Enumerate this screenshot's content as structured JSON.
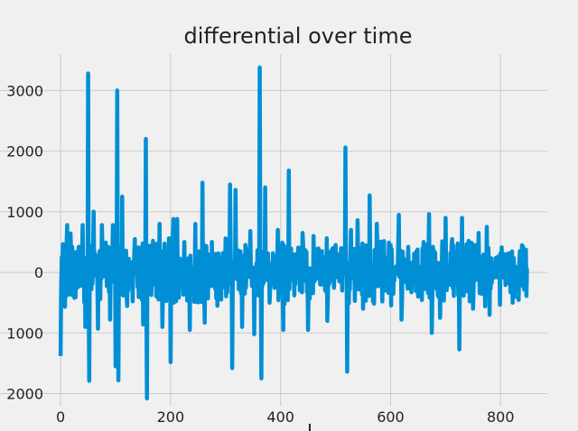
{
  "chart_data": {
    "type": "line",
    "title": "differential over time",
    "xlabel": "",
    "ylabel": "",
    "xlim": [
      -15,
      885
    ],
    "ylim": [
      -2200,
      3600
    ],
    "x_ticks": [
      0,
      200,
      400,
      600,
      800
    ],
    "x_tick_labels": [
      "0",
      "200",
      "400",
      "600",
      "800"
    ],
    "y_ticks": [
      -2000,
      -1000,
      0,
      1000,
      2000,
      3000
    ],
    "y_tick_labels": [
      "2000",
      "1000",
      "0",
      "1000",
      "2000",
      "3000"
    ],
    "grid": true,
    "legend": "none",
    "colors": {
      "line": "#008fd5",
      "background": "#f0f0f0",
      "grid": "#cbcbcb"
    },
    "series": [
      {
        "x_start": 0,
        "x_step": 1,
        "seed": 7,
        "noise_amplitude": 520,
        "values_known_extremes": [
          [
            0,
            -1380
          ],
          [
            5,
            -150
          ],
          [
            12,
            780
          ],
          [
            18,
            640
          ],
          [
            25,
            -420
          ],
          [
            33,
            420
          ],
          [
            40,
            780
          ],
          [
            45,
            -900
          ],
          [
            50,
            3280
          ],
          [
            52,
            -1790
          ],
          [
            60,
            1000
          ],
          [
            68,
            -930
          ],
          [
            75,
            780
          ],
          [
            82,
            490
          ],
          [
            90,
            -780
          ],
          [
            95,
            780
          ],
          [
            100,
            -1550
          ],
          [
            103,
            3000
          ],
          [
            105,
            -1780
          ],
          [
            112,
            1250
          ],
          [
            120,
            -380
          ],
          [
            135,
            550
          ],
          [
            150,
            -860
          ],
          [
            155,
            2200
          ],
          [
            157,
            -2080
          ],
          [
            168,
            520
          ],
          [
            180,
            800
          ],
          [
            185,
            -900
          ],
          [
            200,
            -1480
          ],
          [
            205,
            880
          ],
          [
            212,
            880
          ],
          [
            225,
            500
          ],
          [
            235,
            -950
          ],
          [
            245,
            800
          ],
          [
            258,
            1480
          ],
          [
            262,
            -830
          ],
          [
            275,
            500
          ],
          [
            285,
            -550
          ],
          [
            300,
            560
          ],
          [
            308,
            1450
          ],
          [
            312,
            -1580
          ],
          [
            318,
            1360
          ],
          [
            330,
            -900
          ],
          [
            345,
            680
          ],
          [
            352,
            -1020
          ],
          [
            362,
            3380
          ],
          [
            365,
            -1750
          ],
          [
            372,
            1400
          ],
          [
            380,
            -500
          ],
          [
            395,
            700
          ],
          [
            405,
            -950
          ],
          [
            415,
            1680
          ],
          [
            425,
            -380
          ],
          [
            440,
            650
          ],
          [
            450,
            -950
          ],
          [
            460,
            600
          ],
          [
            475,
            350
          ],
          [
            485,
            -800
          ],
          [
            495,
            400
          ],
          [
            510,
            400
          ],
          [
            518,
            2060
          ],
          [
            521,
            -1640
          ],
          [
            528,
            700
          ],
          [
            540,
            860
          ],
          [
            550,
            -600
          ],
          [
            562,
            1270
          ],
          [
            575,
            800
          ],
          [
            590,
            -300
          ],
          [
            600,
            450
          ],
          [
            615,
            950
          ],
          [
            620,
            -780
          ],
          [
            632,
            420
          ],
          [
            650,
            -400
          ],
          [
            660,
            500
          ],
          [
            670,
            960
          ],
          [
            675,
            -1000
          ],
          [
            690,
            -750
          ],
          [
            700,
            900
          ],
          [
            712,
            550
          ],
          [
            725,
            -1270
          ],
          [
            730,
            900
          ],
          [
            742,
            520
          ],
          [
            750,
            -600
          ],
          [
            760,
            650
          ],
          [
            775,
            750
          ],
          [
            780,
            -700
          ],
          [
            795,
            260
          ],
          [
            810,
            300
          ],
          [
            822,
            -500
          ],
          [
            835,
            350
          ],
          [
            842,
            -200
          ],
          [
            849,
            50
          ]
        ]
      }
    ]
  }
}
